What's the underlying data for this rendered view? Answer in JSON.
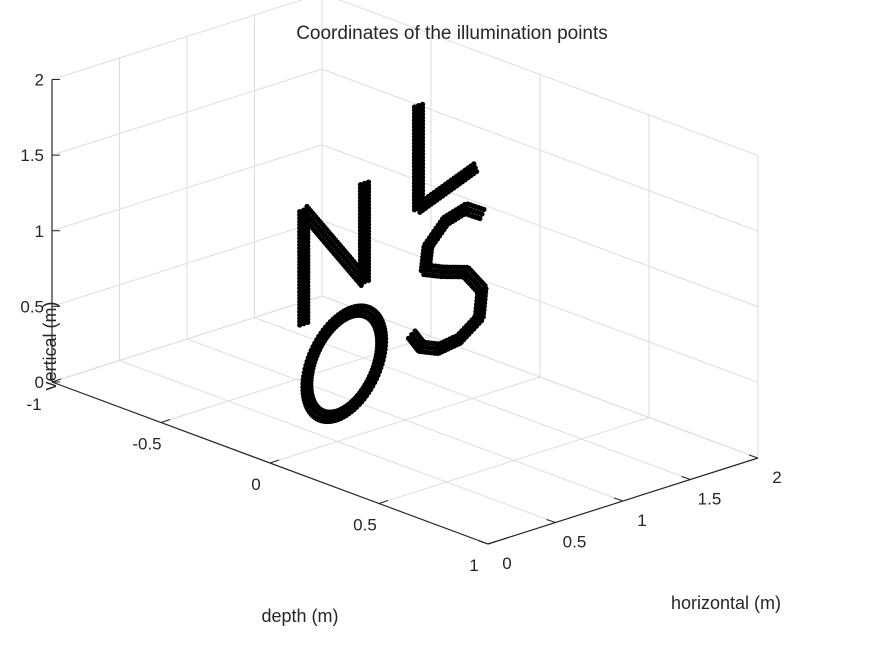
{
  "chart_data": {
    "type": "scatter3d",
    "title": "Coordinates of the illumination points",
    "xlabel": "depth (m)",
    "ylabel": "horizontal (m)",
    "zlabel": "vertical (m)",
    "xlim": [
      -1,
      1
    ],
    "ylim": [
      0,
      2
    ],
    "zlim": [
      0,
      2
    ],
    "x_ticks": [
      -1,
      -0.5,
      0,
      0.5,
      1
    ],
    "y_ticks": [
      0,
      0.5,
      1,
      1.5,
      2
    ],
    "z_ticks": [
      0,
      0.5,
      1,
      1.5,
      2
    ],
    "x_tick_labels": [
      "-1",
      "-0.5",
      "0",
      "0.5",
      "1"
    ],
    "y_tick_labels": [
      "0",
      "0.5",
      "1",
      "1.5",
      "2"
    ],
    "z_tick_labels": [
      "0",
      "0.5",
      "1",
      "1.5",
      "2"
    ],
    "grid": true,
    "marker_color": "#000000",
    "depth_value": 0,
    "letter_thickness": 0.06,
    "point_spacing": 0.022,
    "strokes": {
      "N": [
        [
          0.25,
          0.85
        ],
        [
          0.25,
          1.6
        ],
        [
          0.7,
          1.0
        ],
        [
          0.7,
          1.65
        ]
      ],
      "L": [
        [
          1.1,
          2.05
        ],
        [
          1.1,
          1.37
        ],
        [
          1.52,
          1.52
        ]
      ],
      "O": {
        "center": [
          0.55,
          0.5
        ],
        "radii": [
          0.26,
          0.34
        ],
        "tilt": -0.45
      },
      "S": [
        [
          1.57,
          1.2
        ],
        [
          1.45,
          1.27
        ],
        [
          1.3,
          1.23
        ],
        [
          1.17,
          1.1
        ],
        [
          1.15,
          0.95
        ],
        [
          1.28,
          0.9
        ],
        [
          1.45,
          0.85
        ],
        [
          1.57,
          0.7
        ],
        [
          1.55,
          0.52
        ],
        [
          1.4,
          0.42
        ],
        [
          1.25,
          0.4
        ],
        [
          1.12,
          0.45
        ],
        [
          1.05,
          0.55
        ]
      ]
    }
  }
}
